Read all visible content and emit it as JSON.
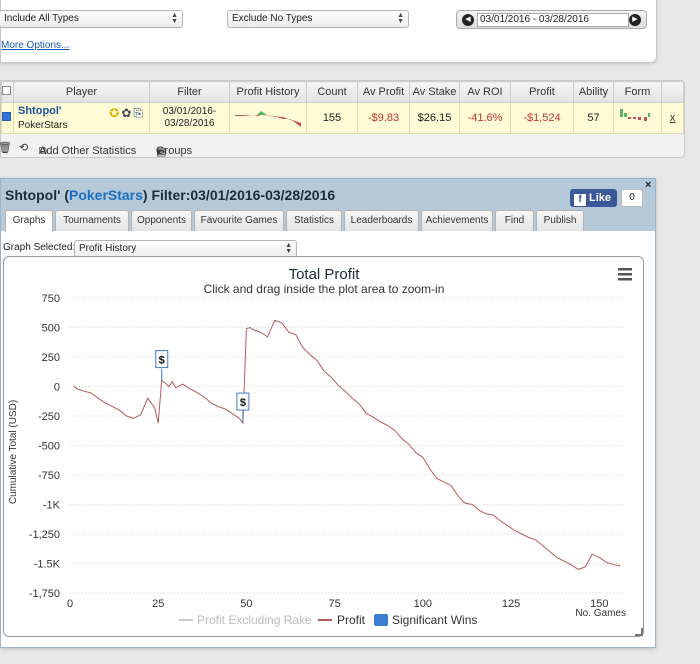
{
  "filters": {
    "include_label": "Include All Types",
    "exclude_label": "Exclude No Types",
    "date_range": "03/01/2016 - 03/28/2016",
    "more_options": "More Options..."
  },
  "stats_table": {
    "headers": [
      "Player",
      "Filter",
      "Profit History",
      "Count",
      "Av Profit",
      "Av Stake",
      "Av ROI",
      "Profit",
      "Ability",
      "Form"
    ],
    "row": {
      "player_name": "Shtopol'",
      "site": "PokerStars",
      "filter_line1": "03/01/2016-",
      "filter_line2": "03/28/2016",
      "count": "155",
      "av_profit": "-$9.83",
      "av_stake": "$26.15",
      "av_roi": "-41.6%",
      "profit": "-$1,524",
      "ability": "57",
      "remove": "x"
    },
    "footer": {
      "add_stats": "Add Other Statistics",
      "groups": "Groups"
    }
  },
  "player_panel": {
    "title_name": "Shtopol' (",
    "title_site": "PokerStars",
    "title_rest": ") Filter:03/01/2016-03/28/2016",
    "like_label": "Like",
    "like_count": "0",
    "close": "×",
    "tabs": [
      "Graphs",
      "Tournaments",
      "Opponents",
      "Favourite Games",
      "Statistics",
      "Leaderboards",
      "Achievements",
      "Find",
      "Publish"
    ],
    "active_tab": "Graphs",
    "graph_selected_label": "Graph Selected:",
    "graph_selected_value": "Profit History"
  },
  "chart_data": {
    "type": "line",
    "title": "Total Profit",
    "subtitle": "Click and drag inside the plot area to zoom-in",
    "xlabel": "No. Games",
    "ylabel": "Cumulative Total (USD)",
    "xlim": [
      0,
      157
    ],
    "ylim": [
      -1750,
      750
    ],
    "x_ticks": [
      0,
      25,
      50,
      75,
      100,
      125,
      150
    ],
    "y_ticks": [
      750,
      500,
      250,
      0,
      -250,
      -500,
      -750,
      -1000,
      -1250,
      -1500,
      -1750
    ],
    "y_tick_labels": [
      "750",
      "500",
      "250",
      "0",
      "-250",
      "-500",
      "-750",
      "-1K",
      "-1,250",
      "-1.5K",
      "-1,750"
    ],
    "legend": [
      "Profit Excluding Rake",
      "Profit",
      "Significant Wins"
    ],
    "legend_position": "bottom",
    "grid": true,
    "colors": {
      "profit": "#b55a5a",
      "rake": "#cccccc",
      "significant": "#3a7dd1"
    },
    "series": [
      {
        "name": "Profit",
        "x": [
          1,
          2,
          4,
          6,
          8,
          10,
          12,
          14,
          16,
          18,
          20,
          22,
          24,
          25,
          26,
          27,
          28,
          29,
          30,
          32,
          34,
          36,
          38,
          40,
          42,
          44,
          46,
          48,
          49,
          50,
          51,
          52,
          54,
          56,
          58,
          60,
          62,
          64,
          66,
          68,
          70,
          72,
          74,
          76,
          78,
          80,
          82,
          84,
          86,
          88,
          90,
          92,
          94,
          96,
          98,
          100,
          102,
          104,
          106,
          108,
          110,
          112,
          114,
          116,
          118,
          120,
          122,
          124,
          126,
          128,
          130,
          132,
          134,
          136,
          138,
          140,
          142,
          144,
          146,
          148,
          150,
          152,
          154,
          156
        ],
        "values": [
          5,
          -20,
          -40,
          -55,
          -100,
          -140,
          -170,
          -200,
          -250,
          -270,
          -240,
          -100,
          -180,
          -310,
          50,
          30,
          0,
          40,
          -10,
          20,
          -20,
          -50,
          -90,
          -140,
          -170,
          -190,
          -230,
          -270,
          -310,
          490,
          500,
          480,
          460,
          420,
          560,
          540,
          460,
          440,
          330,
          270,
          220,
          130,
          80,
          10,
          -40,
          -100,
          -150,
          -230,
          -260,
          -300,
          -330,
          -370,
          -440,
          -490,
          -560,
          -600,
          -700,
          -780,
          -810,
          -840,
          -930,
          -990,
          -1000,
          -1050,
          -1080,
          -1090,
          -1140,
          -1180,
          -1220,
          -1250,
          -1280,
          -1300,
          -1350,
          -1400,
          -1450,
          -1480,
          -1510,
          -1550,
          -1530,
          -1420,
          -1450,
          -1490,
          -1510,
          -1520
        ]
      }
    ],
    "significant_wins": [
      {
        "x": 26,
        "label": "$"
      },
      {
        "x": 49,
        "label": "$"
      }
    ]
  }
}
